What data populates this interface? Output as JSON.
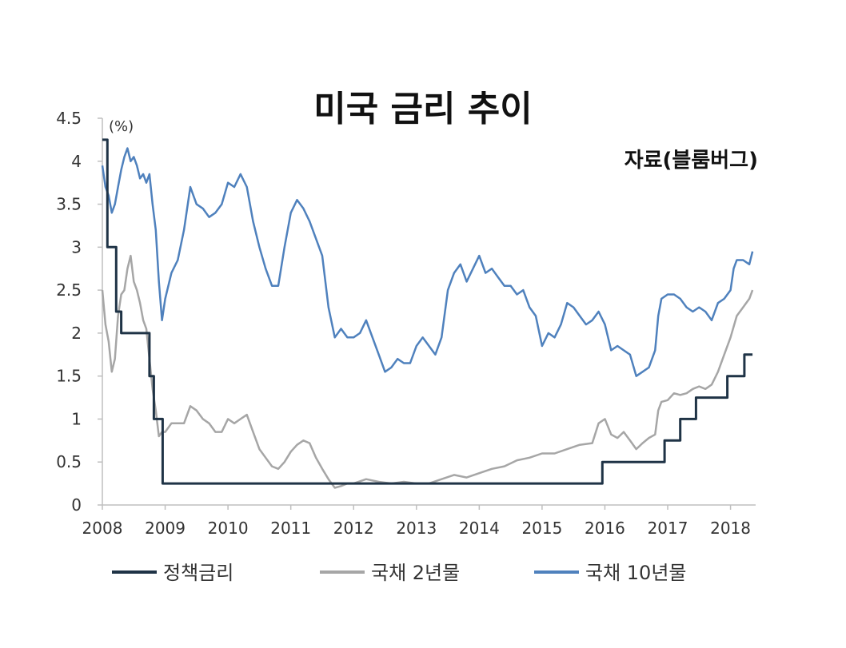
{
  "chart_data": {
    "type": "line",
    "title": "미국 금리 추이",
    "source": "자료(블룸버그)",
    "yunit": "(%)",
    "ylim": [
      0,
      4.5
    ],
    "yticks": [
      "0",
      "0.5",
      "1",
      "1.5",
      "2",
      "2.5",
      "3",
      "3.5",
      "4",
      "4.5"
    ],
    "xlim": [
      2008,
      2018.4
    ],
    "xticks": [
      "2008",
      "2009",
      "2010",
      "2011",
      "2012",
      "2013",
      "2014",
      "2015",
      "2016",
      "2017",
      "2018"
    ],
    "grid": false,
    "legend_position": "bottom",
    "series": [
      {
        "name": "정책금리",
        "color": "#1f3346",
        "step": true,
        "points": [
          [
            2008.0,
            4.25
          ],
          [
            2008.08,
            3.0
          ],
          [
            2008.22,
            2.25
          ],
          [
            2008.3,
            2.0
          ],
          [
            2008.75,
            1.5
          ],
          [
            2008.82,
            1.0
          ],
          [
            2008.96,
            0.25
          ],
          [
            2015.96,
            0.25
          ],
          [
            2015.96,
            0.5
          ],
          [
            2016.95,
            0.5
          ],
          [
            2016.95,
            0.75
          ],
          [
            2017.2,
            0.75
          ],
          [
            2017.2,
            1.0
          ],
          [
            2017.45,
            1.0
          ],
          [
            2017.45,
            1.25
          ],
          [
            2017.95,
            1.25
          ],
          [
            2017.95,
            1.5
          ],
          [
            2018.22,
            1.5
          ],
          [
            2018.22,
            1.75
          ],
          [
            2018.35,
            1.75
          ]
        ]
      },
      {
        "name": "국채 2년물",
        "color": "#a6a6a6",
        "step": false,
        "points": [
          [
            2008.0,
            2.5
          ],
          [
            2008.05,
            2.1
          ],
          [
            2008.1,
            1.9
          ],
          [
            2008.15,
            1.55
          ],
          [
            2008.2,
            1.7
          ],
          [
            2008.25,
            2.2
          ],
          [
            2008.3,
            2.45
          ],
          [
            2008.35,
            2.5
          ],
          [
            2008.4,
            2.75
          ],
          [
            2008.45,
            2.9
          ],
          [
            2008.5,
            2.6
          ],
          [
            2008.55,
            2.5
          ],
          [
            2008.6,
            2.35
          ],
          [
            2008.65,
            2.15
          ],
          [
            2008.7,
            2.05
          ],
          [
            2008.75,
            1.7
          ],
          [
            2008.8,
            1.35
          ],
          [
            2008.85,
            1.1
          ],
          [
            2008.9,
            0.8
          ],
          [
            2008.95,
            0.85
          ],
          [
            2009.0,
            0.85
          ],
          [
            2009.1,
            0.95
          ],
          [
            2009.2,
            0.95
          ],
          [
            2009.3,
            0.95
          ],
          [
            2009.4,
            1.15
          ],
          [
            2009.5,
            1.1
          ],
          [
            2009.6,
            1.0
          ],
          [
            2009.7,
            0.95
          ],
          [
            2009.8,
            0.85
          ],
          [
            2009.9,
            0.85
          ],
          [
            2010.0,
            1.0
          ],
          [
            2010.1,
            0.95
          ],
          [
            2010.2,
            1.0
          ],
          [
            2010.3,
            1.05
          ],
          [
            2010.4,
            0.85
          ],
          [
            2010.5,
            0.65
          ],
          [
            2010.6,
            0.55
          ],
          [
            2010.7,
            0.45
          ],
          [
            2010.8,
            0.42
          ],
          [
            2010.9,
            0.5
          ],
          [
            2011.0,
            0.62
          ],
          [
            2011.1,
            0.7
          ],
          [
            2011.2,
            0.75
          ],
          [
            2011.3,
            0.72
          ],
          [
            2011.4,
            0.55
          ],
          [
            2011.5,
            0.42
          ],
          [
            2011.6,
            0.3
          ],
          [
            2011.7,
            0.2
          ],
          [
            2011.8,
            0.22
          ],
          [
            2011.9,
            0.25
          ],
          [
            2012.0,
            0.25
          ],
          [
            2012.2,
            0.3
          ],
          [
            2012.4,
            0.27
          ],
          [
            2012.6,
            0.25
          ],
          [
            2012.8,
            0.27
          ],
          [
            2013.0,
            0.25
          ],
          [
            2013.2,
            0.25
          ],
          [
            2013.4,
            0.3
          ],
          [
            2013.6,
            0.35
          ],
          [
            2013.8,
            0.32
          ],
          [
            2014.0,
            0.37
          ],
          [
            2014.2,
            0.42
          ],
          [
            2014.4,
            0.45
          ],
          [
            2014.6,
            0.52
          ],
          [
            2014.8,
            0.55
          ],
          [
            2015.0,
            0.6
          ],
          [
            2015.2,
            0.6
          ],
          [
            2015.4,
            0.65
          ],
          [
            2015.6,
            0.7
          ],
          [
            2015.8,
            0.72
          ],
          [
            2015.9,
            0.95
          ],
          [
            2016.0,
            1.0
          ],
          [
            2016.1,
            0.82
          ],
          [
            2016.2,
            0.78
          ],
          [
            2016.3,
            0.85
          ],
          [
            2016.4,
            0.75
          ],
          [
            2016.5,
            0.65
          ],
          [
            2016.6,
            0.72
          ],
          [
            2016.7,
            0.78
          ],
          [
            2016.8,
            0.82
          ],
          [
            2016.85,
            1.1
          ],
          [
            2016.9,
            1.2
          ],
          [
            2017.0,
            1.22
          ],
          [
            2017.1,
            1.3
          ],
          [
            2017.2,
            1.28
          ],
          [
            2017.3,
            1.3
          ],
          [
            2017.4,
            1.35
          ],
          [
            2017.5,
            1.38
          ],
          [
            2017.6,
            1.35
          ],
          [
            2017.7,
            1.4
          ],
          [
            2017.8,
            1.55
          ],
          [
            2017.9,
            1.75
          ],
          [
            2018.0,
            1.95
          ],
          [
            2018.1,
            2.2
          ],
          [
            2018.2,
            2.3
          ],
          [
            2018.3,
            2.4
          ],
          [
            2018.35,
            2.5
          ]
        ]
      },
      {
        "name": "국채 10년물",
        "color": "#4f81bd",
        "step": false,
        "points": [
          [
            2008.0,
            3.95
          ],
          [
            2008.05,
            3.7
          ],
          [
            2008.1,
            3.6
          ],
          [
            2008.15,
            3.4
          ],
          [
            2008.2,
            3.5
          ],
          [
            2008.25,
            3.7
          ],
          [
            2008.3,
            3.9
          ],
          [
            2008.35,
            4.05
          ],
          [
            2008.4,
            4.15
          ],
          [
            2008.45,
            4.0
          ],
          [
            2008.5,
            4.05
          ],
          [
            2008.55,
            3.95
          ],
          [
            2008.6,
            3.8
          ],
          [
            2008.65,
            3.85
          ],
          [
            2008.7,
            3.75
          ],
          [
            2008.75,
            3.85
          ],
          [
            2008.8,
            3.5
          ],
          [
            2008.85,
            3.2
          ],
          [
            2008.9,
            2.6
          ],
          [
            2008.95,
            2.15
          ],
          [
            2009.0,
            2.4
          ],
          [
            2009.1,
            2.7
          ],
          [
            2009.2,
            2.85
          ],
          [
            2009.3,
            3.2
          ],
          [
            2009.4,
            3.7
          ],
          [
            2009.5,
            3.5
          ],
          [
            2009.6,
            3.45
          ],
          [
            2009.7,
            3.35
          ],
          [
            2009.8,
            3.4
          ],
          [
            2009.9,
            3.5
          ],
          [
            2010.0,
            3.75
          ],
          [
            2010.1,
            3.7
          ],
          [
            2010.2,
            3.85
          ],
          [
            2010.3,
            3.7
          ],
          [
            2010.4,
            3.3
          ],
          [
            2010.5,
            3.0
          ],
          [
            2010.6,
            2.75
          ],
          [
            2010.7,
            2.55
          ],
          [
            2010.8,
            2.55
          ],
          [
            2010.9,
            3.0
          ],
          [
            2011.0,
            3.4
          ],
          [
            2011.1,
            3.55
          ],
          [
            2011.2,
            3.45
          ],
          [
            2011.3,
            3.3
          ],
          [
            2011.4,
            3.1
          ],
          [
            2011.5,
            2.9
          ],
          [
            2011.6,
            2.3
          ],
          [
            2011.7,
            1.95
          ],
          [
            2011.8,
            2.05
          ],
          [
            2011.9,
            1.95
          ],
          [
            2012.0,
            1.95
          ],
          [
            2012.1,
            2.0
          ],
          [
            2012.2,
            2.15
          ],
          [
            2012.3,
            1.95
          ],
          [
            2012.4,
            1.75
          ],
          [
            2012.5,
            1.55
          ],
          [
            2012.6,
            1.6
          ],
          [
            2012.7,
            1.7
          ],
          [
            2012.8,
            1.65
          ],
          [
            2012.9,
            1.65
          ],
          [
            2013.0,
            1.85
          ],
          [
            2013.1,
            1.95
          ],
          [
            2013.2,
            1.85
          ],
          [
            2013.3,
            1.75
          ],
          [
            2013.4,
            1.95
          ],
          [
            2013.5,
            2.5
          ],
          [
            2013.6,
            2.7
          ],
          [
            2013.7,
            2.8
          ],
          [
            2013.8,
            2.6
          ],
          [
            2013.9,
            2.75
          ],
          [
            2014.0,
            2.9
          ],
          [
            2014.1,
            2.7
          ],
          [
            2014.2,
            2.75
          ],
          [
            2014.3,
            2.65
          ],
          [
            2014.4,
            2.55
          ],
          [
            2014.5,
            2.55
          ],
          [
            2014.6,
            2.45
          ],
          [
            2014.7,
            2.5
          ],
          [
            2014.8,
            2.3
          ],
          [
            2014.9,
            2.2
          ],
          [
            2015.0,
            1.85
          ],
          [
            2015.1,
            2.0
          ],
          [
            2015.2,
            1.95
          ],
          [
            2015.3,
            2.1
          ],
          [
            2015.4,
            2.35
          ],
          [
            2015.5,
            2.3
          ],
          [
            2015.6,
            2.2
          ],
          [
            2015.7,
            2.1
          ],
          [
            2015.8,
            2.15
          ],
          [
            2015.9,
            2.25
          ],
          [
            2016.0,
            2.1
          ],
          [
            2016.1,
            1.8
          ],
          [
            2016.2,
            1.85
          ],
          [
            2016.3,
            1.8
          ],
          [
            2016.4,
            1.75
          ],
          [
            2016.5,
            1.5
          ],
          [
            2016.6,
            1.55
          ],
          [
            2016.7,
            1.6
          ],
          [
            2016.8,
            1.8
          ],
          [
            2016.85,
            2.2
          ],
          [
            2016.9,
            2.4
          ],
          [
            2017.0,
            2.45
          ],
          [
            2017.1,
            2.45
          ],
          [
            2017.2,
            2.4
          ],
          [
            2017.3,
            2.3
          ],
          [
            2017.4,
            2.25
          ],
          [
            2017.5,
            2.3
          ],
          [
            2017.6,
            2.25
          ],
          [
            2017.7,
            2.15
          ],
          [
            2017.8,
            2.35
          ],
          [
            2017.9,
            2.4
          ],
          [
            2018.0,
            2.5
          ],
          [
            2018.05,
            2.75
          ],
          [
            2018.1,
            2.85
          ],
          [
            2018.2,
            2.85
          ],
          [
            2018.3,
            2.8
          ],
          [
            2018.35,
            2.95
          ]
        ]
      }
    ]
  }
}
